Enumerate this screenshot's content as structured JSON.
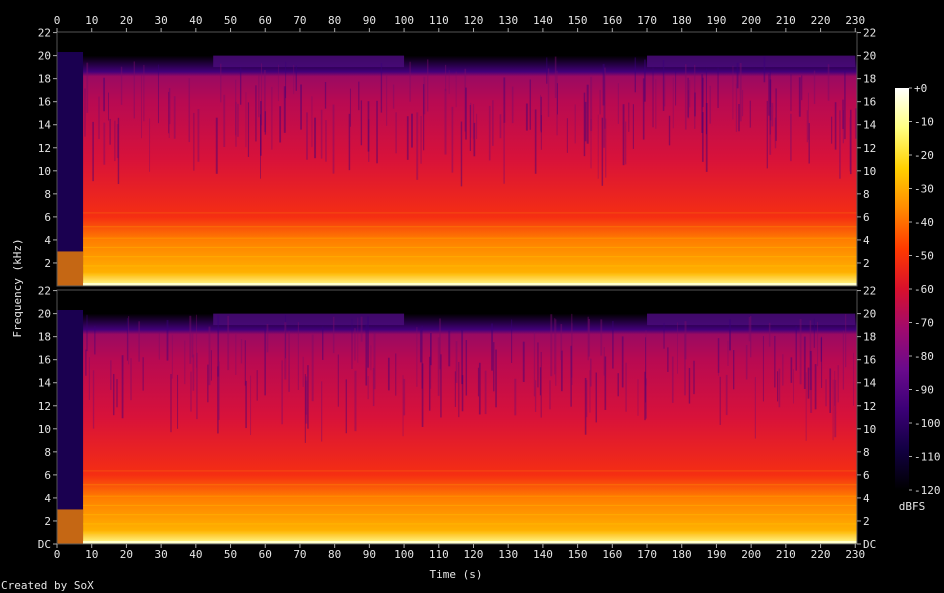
{
  "chart_data": {
    "type": "heatmap",
    "xlabel": "Time (s)",
    "ylabel": "Frequency (kHz)",
    "colorbar_label": "dBFS",
    "credit": "Created by SoX",
    "x_ticks": [
      0,
      10,
      20,
      30,
      40,
      50,
      60,
      70,
      80,
      90,
      100,
      110,
      120,
      130,
      140,
      150,
      160,
      170,
      180,
      190,
      200,
      210,
      220,
      230
    ],
    "xlim": [
      0,
      230.5
    ],
    "channels": [
      {
        "y_ticks": [
          "22",
          "20",
          "18",
          "16",
          "14",
          "12",
          "10",
          "8",
          "6",
          "4",
          "2"
        ]
      },
      {
        "y_ticks": [
          "22",
          "20",
          "18",
          "16",
          "14",
          "12",
          "10",
          "8",
          "6",
          "4",
          "2",
          "DC"
        ]
      }
    ],
    "ylim_khz": [
      0,
      22.05
    ],
    "audio_bandwidth_khz": 20,
    "colorbar_ticks": [
      "+0",
      "-10",
      "-20",
      "-30",
      "-40",
      "-50",
      "-60",
      "-70",
      "-80",
      "-90",
      "-100",
      "-110",
      "-120"
    ],
    "colorbar_range_db": [
      -120,
      0
    ],
    "colorbar_colors": [
      "#000000",
      "#120042",
      "#3b0076",
      "#6a0a8c",
      "#a00a6e",
      "#d8102c",
      "#ff3a00",
      "#ff8a00",
      "#ffd000",
      "#ffff80",
      "#ffffff"
    ],
    "intro_end_s": 7.5,
    "quieter_high_band_sections_s": [
      [
        45,
        100
      ],
      [
        170,
        230
      ]
    ]
  }
}
